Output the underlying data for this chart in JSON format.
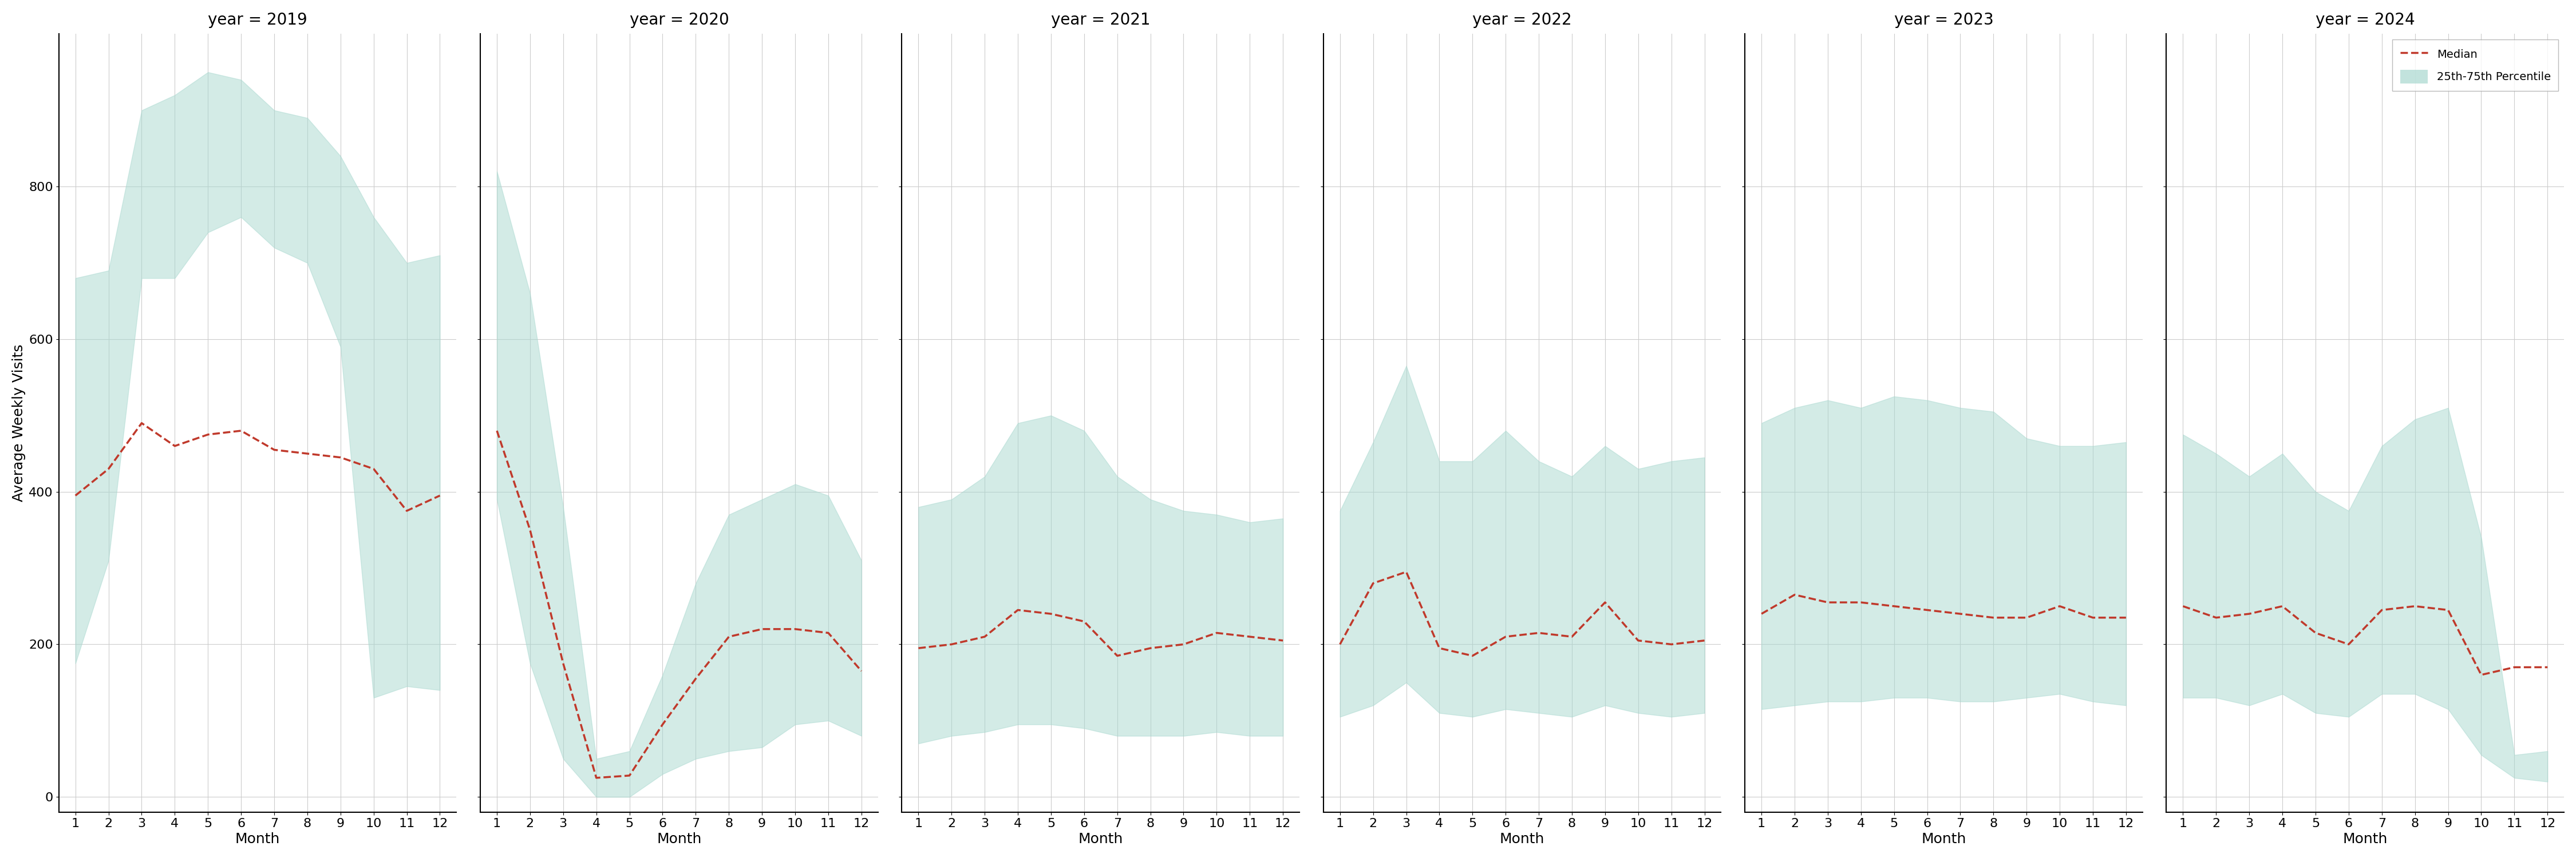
{
  "years": [
    2019,
    2020,
    2021,
    2022,
    2023,
    2024
  ],
  "months": [
    1,
    2,
    3,
    4,
    5,
    6,
    7,
    8,
    9,
    10,
    11,
    12
  ],
  "median": {
    "2019": [
      395,
      430,
      490,
      460,
      475,
      480,
      455,
      450,
      445,
      430,
      375,
      395
    ],
    "2020": [
      480,
      350,
      175,
      25,
      28,
      95,
      155,
      210,
      220,
      220,
      215,
      165
    ],
    "2021": [
      195,
      200,
      210,
      245,
      240,
      230,
      185,
      195,
      200,
      215,
      210,
      205
    ],
    "2022": [
      200,
      280,
      295,
      195,
      185,
      210,
      215,
      210,
      255,
      205,
      200,
      205
    ],
    "2023": [
      240,
      265,
      255,
      255,
      250,
      245,
      240,
      235,
      235,
      250,
      235,
      235
    ],
    "2024": [
      250,
      235,
      240,
      250,
      215,
      200,
      245,
      250,
      245,
      160,
      170,
      170
    ]
  },
  "q25": {
    "2019": [
      175,
      310,
      680,
      680,
      740,
      760,
      720,
      700,
      590,
      130,
      145,
      140
    ],
    "2020": [
      390,
      175,
      50,
      0,
      0,
      30,
      50,
      60,
      65,
      95,
      100,
      80
    ],
    "2021": [
      70,
      80,
      85,
      95,
      95,
      90,
      80,
      80,
      80,
      85,
      80,
      80
    ],
    "2022": [
      105,
      120,
      150,
      110,
      105,
      115,
      110,
      105,
      120,
      110,
      105,
      110
    ],
    "2023": [
      115,
      120,
      125,
      125,
      130,
      130,
      125,
      125,
      130,
      135,
      125,
      120
    ],
    "2024": [
      130,
      130,
      120,
      135,
      110,
      105,
      135,
      135,
      115,
      55,
      25,
      20
    ]
  },
  "q75": {
    "2019": [
      680,
      690,
      900,
      920,
      950,
      940,
      900,
      890,
      840,
      760,
      700,
      710
    ],
    "2020": [
      820,
      660,
      380,
      50,
      60,
      160,
      280,
      370,
      390,
      410,
      395,
      310
    ],
    "2021": [
      380,
      390,
      420,
      490,
      500,
      480,
      420,
      390,
      375,
      370,
      360,
      365
    ],
    "2022": [
      375,
      465,
      565,
      440,
      440,
      480,
      440,
      420,
      460,
      430,
      440,
      445
    ],
    "2023": [
      490,
      510,
      520,
      510,
      525,
      520,
      510,
      505,
      470,
      460,
      460,
      465
    ],
    "2024": [
      475,
      450,
      420,
      450,
      400,
      375,
      460,
      495,
      510,
      340,
      55,
      60
    ]
  },
  "fill_color": "#a8d8cf",
  "fill_alpha": 0.5,
  "line_color": "#c0392b",
  "line_style": "--",
  "line_width": 2.5,
  "ylabel": "Average Weekly Visits",
  "xlabel": "Month",
  "ylim": [
    -20,
    1000
  ],
  "yticks": [
    0,
    200,
    400,
    600,
    800
  ],
  "background_color": "#ffffff",
  "grid_color": "#cccccc",
  "title_fontsize": 20,
  "label_fontsize": 18,
  "tick_fontsize": 16
}
